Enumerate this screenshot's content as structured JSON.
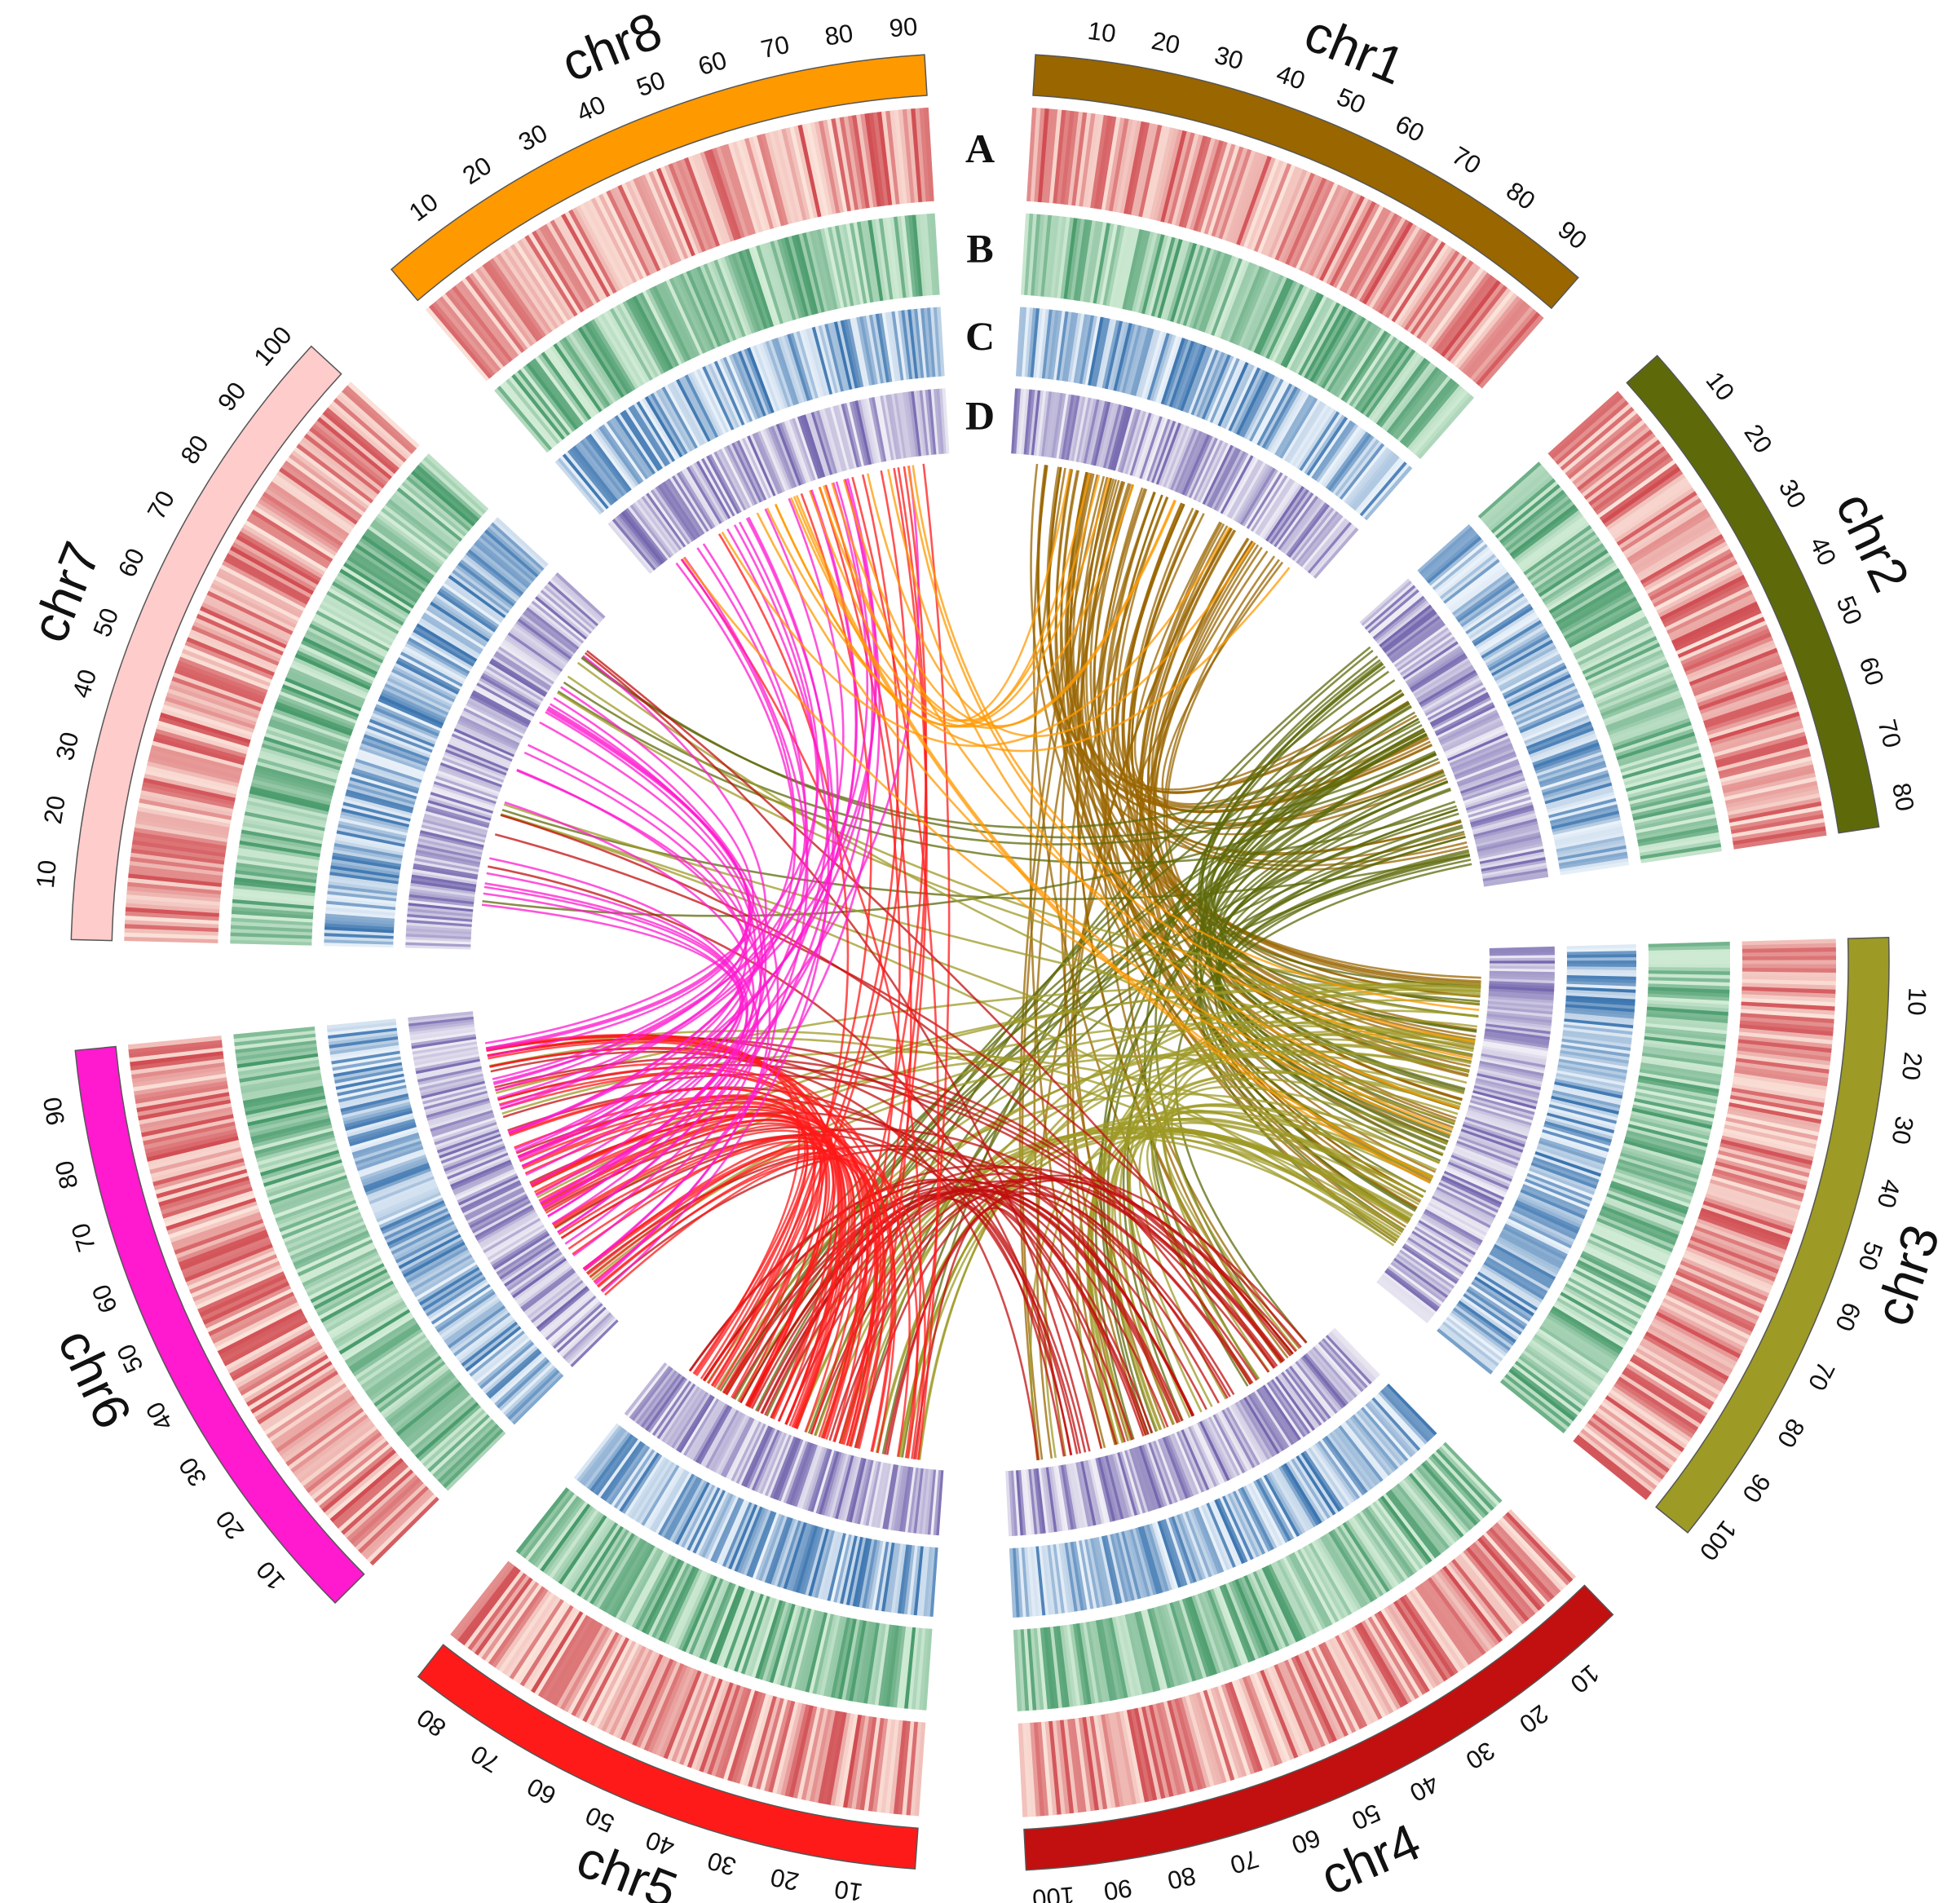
{
  "chart_data": {
    "type": "circos",
    "chromosomes": [
      {
        "name": "chr1",
        "label": "chr1",
        "length": 95,
        "color": "#996600",
        "ticks": [
          10,
          20,
          30,
          40,
          50,
          60,
          70,
          80,
          90
        ]
      },
      {
        "name": "chr2",
        "label": "chr2",
        "length": 84,
        "color": "#5E6A0A",
        "ticks": [
          10,
          20,
          30,
          40,
          50,
          60,
          70,
          80
        ]
      },
      {
        "name": "chr3",
        "label": "chr3",
        "length": 102,
        "color": "#9D9A26",
        "ticks": [
          10,
          20,
          30,
          40,
          50,
          60,
          70,
          80,
          90,
          100
        ]
      },
      {
        "name": "chr4",
        "label": "chr4",
        "length": 104,
        "color": "#C20F0F",
        "ticks": [
          10,
          20,
          30,
          40,
          50,
          60,
          70,
          80,
          90,
          100
        ]
      },
      {
        "name": "chr5",
        "label": "chr5",
        "length": 86,
        "color": "#FF1A1A",
        "ticks": [
          10,
          20,
          30,
          40,
          50,
          60,
          70,
          80
        ]
      },
      {
        "name": "chr6",
        "label": "chr6",
        "length": 99,
        "color": "#FF19CF",
        "ticks": [
          10,
          20,
          30,
          40,
          50,
          60,
          70,
          80,
          90
        ]
      },
      {
        "name": "chr7",
        "label": "chr7",
        "length": 104,
        "color": "#FFCCCC",
        "ticks": [
          10,
          20,
          30,
          40,
          50,
          60,
          70,
          80,
          90,
          100
        ]
      },
      {
        "name": "chr8",
        "label": "chr8",
        "length": 93,
        "color": "#FF9900",
        "ticks": [
          10,
          20,
          30,
          40,
          50,
          60,
          70,
          80,
          90
        ]
      }
    ],
    "tracks": [
      {
        "label": "A",
        "palette": "reds",
        "colors": [
          "#FBE3DA",
          "#C9323A"
        ]
      },
      {
        "label": "B",
        "palette": "greens",
        "colors": [
          "#D2ECD6",
          "#2E8B57"
        ]
      },
      {
        "label": "C",
        "palette": "blues",
        "colors": [
          "#EAF2FA",
          "#1D5FA3"
        ]
      },
      {
        "label": "D",
        "palette": "purples",
        "colors": [
          "#EFEDF5",
          "#5E4FA2"
        ]
      }
    ],
    "links": [
      {
        "from": "chr1",
        "to": "chr3",
        "count": 40
      },
      {
        "from": "chr1",
        "to": "chr2",
        "count": 20
      },
      {
        "from": "chr1",
        "to": "chr4",
        "count": 15
      },
      {
        "from": "chr2",
        "to": "chr3",
        "count": 30
      },
      {
        "from": "chr2",
        "to": "chr5",
        "count": 15
      },
      {
        "from": "chr2",
        "to": "chr4",
        "count": 10
      },
      {
        "from": "chr2",
        "to": "chr7",
        "count": 6
      },
      {
        "from": "chr3",
        "to": "chr4",
        "count": 25
      },
      {
        "from": "chr3",
        "to": "chr5",
        "count": 20
      },
      {
        "from": "chr3",
        "to": "chr6",
        "count": 10
      },
      {
        "from": "chr3",
        "to": "chr7",
        "count": 6
      },
      {
        "from": "chr4",
        "to": "chr5",
        "count": 25
      },
      {
        "from": "chr4",
        "to": "chr6",
        "count": 15
      },
      {
        "from": "chr4",
        "to": "chr7",
        "count": 5
      },
      {
        "from": "chr5",
        "to": "chr6",
        "count": 45
      },
      {
        "from": "chr5",
        "to": "chr8",
        "count": 12
      },
      {
        "from": "chr6",
        "to": "chr7",
        "count": 20
      },
      {
        "from": "chr6",
        "to": "chr8",
        "count": 20
      },
      {
        "from": "chr8",
        "to": "chr1",
        "count": 10
      },
      {
        "from": "chr8",
        "to": "chr3",
        "count": 8
      }
    ]
  }
}
